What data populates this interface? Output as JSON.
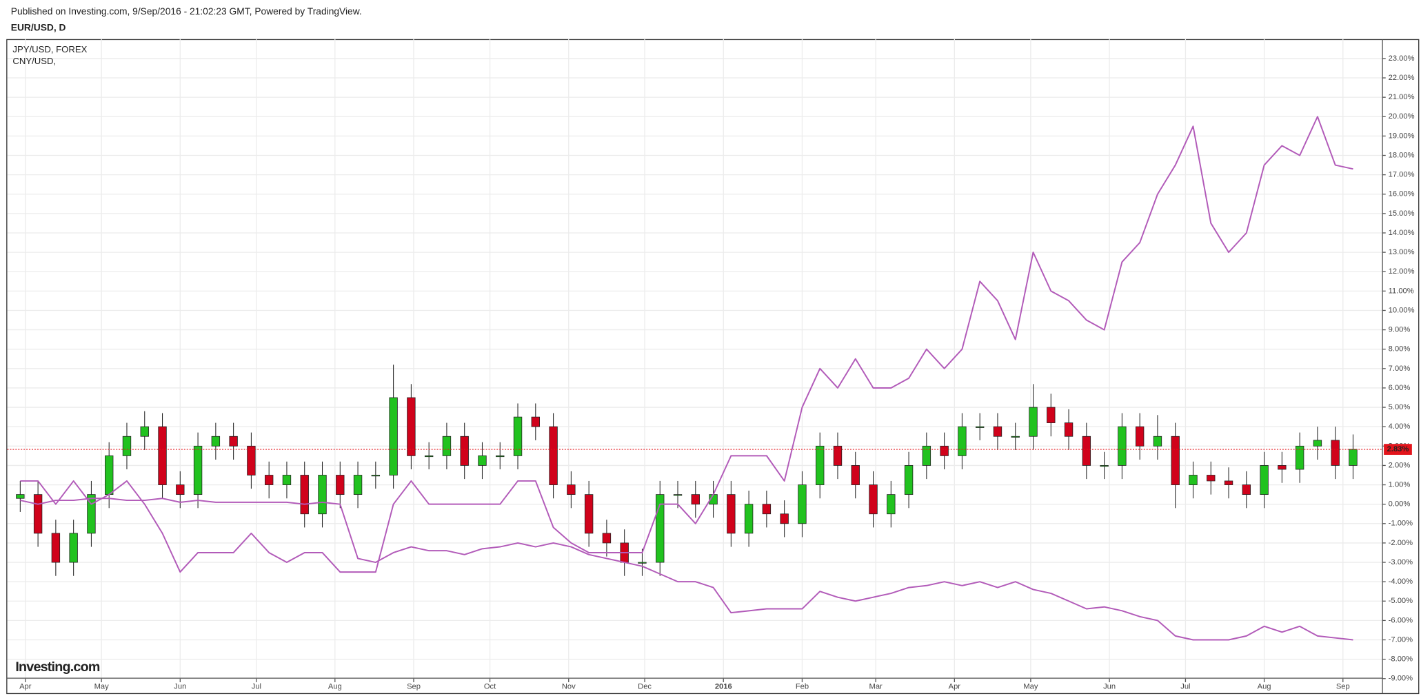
{
  "header": {
    "published": "Published on Investing.com, 9/Sep/2016 - 21:02:23 GMT, Powered by TradingView."
  },
  "chart_data": {
    "type": "candlestick",
    "title": "EUR/USD, D",
    "logo": "Investing.com",
    "x": [
      0,
      1,
      2,
      3,
      4,
      5,
      6,
      7,
      8,
      9,
      10,
      11,
      12,
      13,
      14,
      15,
      16,
      17,
      18,
      19,
      20,
      21,
      22,
      23,
      24,
      25,
      26,
      27,
      28,
      29,
      30,
      31,
      32,
      33,
      34,
      35,
      36,
      37,
      38,
      39,
      40,
      41,
      42,
      43,
      44,
      45,
      46,
      47,
      48,
      49,
      50,
      51,
      52,
      53,
      54,
      55,
      56,
      57,
      58,
      59,
      60,
      61,
      62,
      63,
      64,
      65,
      66,
      67,
      68,
      69,
      70,
      71,
      72,
      73,
      74,
      75
    ],
    "open": [
      0.3,
      0.5,
      -1.5,
      -3,
      -1.5,
      0.5,
      2.5,
      3.5,
      4,
      1,
      0.5,
      3,
      3.5,
      3,
      1.5,
      1,
      1.5,
      -0.5,
      1.5,
      0.5,
      1.5,
      1.5,
      5.5,
      2.5,
      2.5,
      3.5,
      2,
      2.5,
      2.5,
      4.5,
      4,
      1,
      0.5,
      -1.5,
      -2,
      -3,
      -3,
      0.5,
      0.5,
      0,
      0.5,
      -1.5,
      0,
      -0.5,
      -1,
      1,
      3,
      2,
      1,
      -0.5,
      0.5,
      2,
      3,
      2.5,
      4,
      4,
      3.5,
      3.5,
      5,
      4.2,
      3.5,
      2,
      2,
      4,
      3,
      3.5,
      1,
      1.5,
      1.2,
      1,
      0.5,
      2,
      1.8,
      3,
      3.3,
      2
    ],
    "high": [
      1.2,
      1.2,
      -0.8,
      -0.8,
      1.2,
      3.2,
      4.2,
      4.8,
      4.7,
      1.7,
      3.7,
      4.2,
      4.2,
      3.7,
      2.2,
      2.2,
      2.2,
      2.2,
      2.2,
      2.2,
      2.2,
      7.2,
      6.2,
      3.2,
      4.2,
      4.2,
      3.2,
      3.2,
      5.2,
      5.2,
      4.7,
      1.7,
      1.2,
      -0.8,
      -1.3,
      -2.3,
      1.2,
      1.2,
      1.2,
      1.2,
      1.2,
      0.7,
      0.7,
      0.2,
      1.7,
      3.7,
      3.7,
      2.7,
      1.7,
      1.2,
      2.7,
      3.7,
      3.7,
      4.7,
      4.7,
      4.7,
      4.2,
      6.2,
      5.7,
      4.9,
      4.2,
      2.7,
      4.7,
      4.7,
      4.6,
      4.2,
      2.2,
      2.2,
      1.9,
      1.7,
      2.7,
      2.7,
      3.7,
      4.0,
      4.0,
      3.6
    ],
    "low": [
      -0.4,
      -2.2,
      -3.7,
      -3.7,
      -2.2,
      -0.2,
      1.8,
      2.8,
      0.3,
      -0.2,
      -0.2,
      2.3,
      2.3,
      0.8,
      0.3,
      0.3,
      -1.2,
      -1.2,
      -0.2,
      -0.2,
      0.8,
      0.8,
      1.8,
      1.8,
      1.8,
      1.3,
      1.3,
      1.8,
      1.8,
      3.3,
      0.3,
      -0.2,
      -2.2,
      -2.7,
      -3.7,
      -3.7,
      -3.7,
      -0.2,
      -0.7,
      -0.7,
      -2.2,
      -2.2,
      -1.2,
      -1.7,
      -1.7,
      0.3,
      1.3,
      0.3,
      -1.2,
      -1.2,
      -0.2,
      1.3,
      1.8,
      1.8,
      3.3,
      2.8,
      2.8,
      2.8,
      3.5,
      2.8,
      1.3,
      1.3,
      1.3,
      2.3,
      2.3,
      -0.2,
      0.3,
      0.5,
      0.3,
      -0.2,
      -0.2,
      1.1,
      1.1,
      2.3,
      1.3,
      1.3
    ],
    "close": [
      0.5,
      -1.5,
      -3,
      -1.5,
      0.5,
      2.5,
      3.5,
      4,
      1,
      0.5,
      3,
      3.5,
      3,
      1.5,
      1,
      1.5,
      -0.5,
      1.5,
      0.5,
      1.5,
      1.5,
      5.5,
      2.5,
      2.5,
      3.5,
      2,
      2.5,
      2.5,
      4.5,
      4,
      1,
      0.5,
      -1.5,
      -2,
      -3,
      -3,
      0.5,
      0.5,
      0,
      0.5,
      -1.5,
      0,
      -0.5,
      -1,
      1,
      3,
      2,
      1,
      -0.5,
      0.5,
      2,
      3,
      2.5,
      4,
      4,
      3.5,
      3.5,
      5,
      4.2,
      3.5,
      2,
      2,
      4,
      3,
      3.5,
      1,
      1.5,
      1.2,
      1,
      0.5,
      2,
      1.8,
      3,
      3.3,
      2,
      2.83
    ],
    "up_color": "#21c21f",
    "down_color": "#d0021b",
    "series": [
      {
        "name": "JPY/USD, FOREX",
        "color": "#b25bb9",
        "values": [
          1.2,
          1.2,
          0,
          1.2,
          0,
          0.5,
          1.2,
          0,
          -1.5,
          -3.5,
          -2.5,
          -2.5,
          -2.5,
          -1.5,
          -2.5,
          -3,
          -2.5,
          -2.5,
          -3.5,
          -3.5,
          -3.5,
          0,
          1.2,
          0,
          0,
          0,
          0,
          0,
          1.2,
          1.2,
          -1.2,
          -2,
          -2.5,
          -2.5,
          -2.5,
          -2.5,
          0,
          0,
          -1,
          0.5,
          2.5,
          2.5,
          2.5,
          1.2,
          5,
          7,
          6,
          7.5,
          6,
          6,
          6.5,
          8,
          7,
          8,
          11.5,
          10.5,
          8.5,
          13,
          11,
          10.5,
          9.5,
          9,
          12.5,
          13.5,
          16,
          17.5,
          19.5,
          14.5,
          13,
          14,
          17.5,
          18.5,
          18,
          20,
          17.5,
          17.3
        ]
      },
      {
        "name": "CNY/USD,",
        "color": "#b25bb9",
        "values": [
          0.2,
          0,
          0.2,
          0.2,
          0.3,
          0.3,
          0.2,
          0.2,
          0.3,
          0.1,
          0.2,
          0.1,
          0.1,
          0.1,
          0.1,
          0.1,
          0,
          0.1,
          0,
          -2.8,
          -3,
          -2.5,
          -2.2,
          -2.4,
          -2.4,
          -2.6,
          -2.3,
          -2.2,
          -2,
          -2.2,
          -2,
          -2.2,
          -2.6,
          -2.8,
          -3,
          -3.2,
          -3.6,
          -4,
          -4,
          -4.3,
          -5.6,
          -5.5,
          -5.4,
          -5.4,
          -5.4,
          -4.5,
          -4.8,
          -5,
          -4.8,
          -4.6,
          -4.3,
          -4.2,
          -4,
          -4.2,
          -4,
          -4.3,
          -4,
          -4.4,
          -4.6,
          -5,
          -5.4,
          -5.3,
          -5.5,
          -5.8,
          -6,
          -6.8,
          -7,
          -7,
          -7,
          -6.8,
          -6.3,
          -6.6,
          -6.3,
          -6.8,
          -6.9,
          -7
        ]
      }
    ],
    "xlim": [
      -0.73,
      76.63
    ],
    "xticks": [
      {
        "value": 0.29,
        "label": "Apr"
      },
      {
        "value": 4.57,
        "label": "May"
      },
      {
        "value": 9.0,
        "label": "Jun"
      },
      {
        "value": 13.29,
        "label": "Jul"
      },
      {
        "value": 17.71,
        "label": "Aug"
      },
      {
        "value": 22.14,
        "label": "Sep"
      },
      {
        "value": 26.43,
        "label": "Oct"
      },
      {
        "value": 30.86,
        "label": "Nov"
      },
      {
        "value": 35.14,
        "label": "Dec"
      },
      {
        "value": 39.57,
        "label": "2016"
      },
      {
        "value": 44.0,
        "label": "Feb"
      },
      {
        "value": 48.14,
        "label": "Mar"
      },
      {
        "value": 52.57,
        "label": "Apr"
      },
      {
        "value": 56.86,
        "label": "May"
      },
      {
        "value": 61.29,
        "label": "Jun"
      },
      {
        "value": 65.57,
        "label": "Jul"
      },
      {
        "value": 70.0,
        "label": "Aug"
      },
      {
        "value": 74.43,
        "label": "Sep"
      }
    ],
    "ylim": [
      -9,
      24
    ],
    "yticks": [
      {
        "value": 23,
        "label": "23.00%"
      },
      {
        "value": 22,
        "label": "22.00%"
      },
      {
        "value": 21,
        "label": "21.00%"
      },
      {
        "value": 20,
        "label": "20.00%"
      },
      {
        "value": 19,
        "label": "19.00%"
      },
      {
        "value": 18,
        "label": "18.00%"
      },
      {
        "value": 17,
        "label": "17.00%"
      },
      {
        "value": 16,
        "label": "16.00%"
      },
      {
        "value": 15,
        "label": "15.00%"
      },
      {
        "value": 14,
        "label": "14.00%"
      },
      {
        "value": 13,
        "label": "13.00%"
      },
      {
        "value": 12,
        "label": "12.00%"
      },
      {
        "value": 11,
        "label": "11.00%"
      },
      {
        "value": 10,
        "label": "10.00%"
      },
      {
        "value": 9,
        "label": "9.00%"
      },
      {
        "value": 8,
        "label": "8.00%"
      },
      {
        "value": 7,
        "label": "7.00%"
      },
      {
        "value": 6,
        "label": "6.00%"
      },
      {
        "value": 5,
        "label": "5.00%"
      },
      {
        "value": 4,
        "label": "4.00%"
      },
      {
        "value": 3,
        "label": "3.00%"
      },
      {
        "value": 2,
        "label": "2.00%"
      },
      {
        "value": 1,
        "label": "1.00%"
      },
      {
        "value": 0,
        "label": "0.00%"
      },
      {
        "value": -1,
        "label": "-1.00%"
      },
      {
        "value": -2,
        "label": "-2.00%"
      },
      {
        "value": -3,
        "label": "-3.00%"
      },
      {
        "value": -4,
        "label": "-4.00%"
      },
      {
        "value": -5,
        "label": "-5.00%"
      },
      {
        "value": -6,
        "label": "-6.00%"
      },
      {
        "value": -7,
        "label": "-7.00%"
      },
      {
        "value": -8,
        "label": "-8.00%"
      },
      {
        "value": -9,
        "label": "-9.00%"
      }
    ],
    "grid": true,
    "last_value": 2.83,
    "last_value_label": "2.83%",
    "last_value_color": "#e3141b"
  }
}
